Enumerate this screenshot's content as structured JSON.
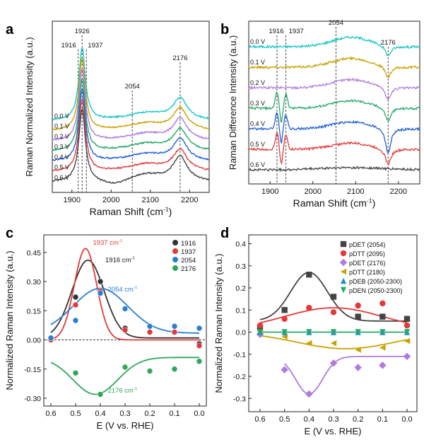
{
  "colors": {
    "v00": "#1ac6c6",
    "v01": "#c9a200",
    "v02": "#b07be0",
    "v03": "#27a86a",
    "v04": "#1f5fd6",
    "v05": "#e23a3a",
    "v06": "#444444",
    "p1916": "#333333",
    "p1937": "#e23a3a",
    "p2054": "#2a7fd0",
    "p2176": "#2fa65a",
    "d_pdet2054": "#444444",
    "d_pdtt2095": "#e23a3a",
    "d_pdet2176": "#b07be0",
    "d_pdtt2180": "#c9a200",
    "d_pdeb": "#1f8fd0",
    "d_pden": "#27a86a"
  },
  "chart_data": [
    {
      "panel": "a",
      "type": "line",
      "xlabel": "Raman Shift (cm-1)",
      "ylabel": "Raman Normalized Intensity (a.u.)",
      "xlim": [
        1850,
        2250
      ],
      "xticks": [
        "1900",
        "2000",
        "2100",
        "2200"
      ],
      "series_labels": [
        "0.0 V",
        "0.1 V",
        "0.2 V",
        "0.3 V",
        "0.4 V",
        "0.5 V",
        "0.6 V"
      ],
      "series_colors": [
        "v00",
        "v01",
        "v02",
        "v03",
        "v04",
        "v05",
        "v06"
      ],
      "series_offsets": [
        6,
        5,
        4,
        3,
        2,
        1,
        0
      ],
      "peaks": [
        {
          "center": 1926,
          "width": 10,
          "amp": 8.5
        },
        {
          "center": 2176,
          "width": 22,
          "amp": 2.6
        },
        {
          "center": 2090,
          "width": 60,
          "amp": 0.9
        }
      ],
      "guides": [
        {
          "x": 1916,
          "label": "1916"
        },
        {
          "x": 1926,
          "label": "1926"
        },
        {
          "x": 1937,
          "label": "1937"
        },
        {
          "x": 2054,
          "label": "2054"
        },
        {
          "x": 2176,
          "label": "2176"
        }
      ]
    },
    {
      "panel": "b",
      "type": "line",
      "xlabel": "Raman Shift (cm-1)",
      "ylabel": "Raman Difference Intensity (a.u.)",
      "xlim": [
        1850,
        2250
      ],
      "xticks": [
        "1900",
        "2000",
        "2100",
        "2200"
      ],
      "series_labels": [
        "0.0 V",
        "0.1 V",
        "0.2 V",
        "0.3 V",
        "0.4 V",
        "0.5 V",
        "0.6 V"
      ],
      "series_colors": [
        "v00",
        "v01",
        "v02",
        "v03",
        "v04",
        "v05",
        "v06"
      ],
      "series_offsets": [
        6,
        5,
        4,
        3,
        2,
        1,
        0
      ],
      "guides": [
        {
          "x": 1916,
          "label": "1916"
        },
        {
          "x": 1937,
          "label": "1937"
        },
        {
          "x": 2054,
          "label": "2054"
        },
        {
          "x": 2176,
          "label": "2176"
        }
      ]
    },
    {
      "panel": "c",
      "type": "scatter",
      "xlabel": "E (V vs. RHE)",
      "ylabel": "Normalized Raman Intensity (a.u.)",
      "xlim": [
        0.6,
        0.0
      ],
      "ylim": [
        -0.34,
        0.54
      ],
      "xticks": [
        "0.6",
        "0.5",
        "0.4",
        "0.3",
        "0.2",
        "0.1",
        "0.0"
      ],
      "yticks": [
        "-0.30",
        "-0.15",
        "0.00",
        "0.15",
        "0.30",
        "0.45"
      ],
      "legend": "top-right",
      "series": [
        {
          "name": "1916",
          "color": "p1916",
          "x": [
            0.6,
            0.5,
            0.4,
            0.3,
            0.2,
            0.1,
            0.0
          ],
          "y": [
            0.01,
            0.22,
            0.3,
            0.06,
            0.04,
            0.04,
            -0.02
          ],
          "annotation": "1916 cm-1"
        },
        {
          "name": "1937",
          "color": "p1937",
          "x": [
            0.6,
            0.5,
            0.4,
            0.3,
            0.2,
            0.1,
            0.0
          ],
          "y": [
            0.0,
            0.18,
            0.25,
            0.05,
            0.04,
            0.04,
            -0.03
          ],
          "annotation": "1937 cm-1"
        },
        {
          "name": "2054",
          "color": "p2054",
          "x": [
            0.6,
            0.5,
            0.4,
            0.3,
            0.2,
            0.1,
            0.0
          ],
          "y": [
            0.01,
            0.1,
            0.24,
            0.16,
            0.07,
            0.07,
            0.06
          ],
          "annotation": "2054 cm-1"
        },
        {
          "name": "2176",
          "color": "p2176",
          "x": [
            0.5,
            0.4,
            0.3,
            0.2,
            0.1,
            0.0
          ],
          "y": [
            -0.17,
            -0.28,
            -0.14,
            -0.16,
            -0.15,
            -0.11
          ],
          "annotation": "2176 cm-1"
        }
      ]
    },
    {
      "panel": "d",
      "type": "scatter",
      "xlabel": "E (V vs. RHE)",
      "ylabel": "Normalized Raman Intensity (a.u.)",
      "xlim": [
        0.6,
        0.0
      ],
      "ylim": [
        -0.36,
        0.44
      ],
      "xticks": [
        "0.6",
        "0.5",
        "0.4",
        "0.3",
        "0.2",
        "0.1",
        "0.0"
      ],
      "yticks": [
        "-0.3",
        "-0.2",
        "-0.1",
        "0.0",
        "0.1",
        "0.2",
        "0.3",
        "0.4"
      ],
      "legend": "top-right",
      "series": [
        {
          "name": "pDET (2054)",
          "color": "d_pdet2054",
          "marker": "square",
          "x": [
            0.6,
            0.5,
            0.4,
            0.3,
            0.2,
            0.1,
            0.0
          ],
          "y": [
            0.02,
            0.1,
            0.26,
            0.16,
            0.07,
            0.07,
            0.06
          ]
        },
        {
          "name": "pDTT (2095)",
          "color": "d_pdtt2095",
          "marker": "circle",
          "x": [
            0.6,
            0.5,
            0.4,
            0.3,
            0.2,
            0.1,
            0.0
          ],
          "y": [
            0.03,
            0.06,
            0.11,
            0.09,
            0.12,
            0.13,
            0.03
          ]
        },
        {
          "name": "pDET (2176)",
          "color": "d_pdet2176",
          "marker": "diamond",
          "x": [
            0.6,
            0.5,
            0.4,
            0.3,
            0.2,
            0.1,
            0.0
          ],
          "y": [
            -0.01,
            -0.17,
            -0.28,
            -0.14,
            -0.16,
            -0.15,
            -0.11
          ]
        },
        {
          "name": "pDTT (2180)",
          "color": "d_pdtt2180",
          "marker": "triangle-left",
          "x": [
            0.6,
            0.5,
            0.4,
            0.3,
            0.2,
            0.1,
            0.0
          ],
          "y": [
            0.0,
            -0.02,
            -0.05,
            -0.05,
            -0.08,
            -0.07,
            -0.04
          ]
        },
        {
          "name": "pDEB (2050-2300)",
          "color": "d_pdeb",
          "marker": "triangle-up",
          "x": [
            0.6,
            0.5,
            0.4,
            0.3,
            0.2,
            0.1,
            0.0
          ],
          "y": [
            0.0,
            0.0,
            0.0,
            0.0,
            0.0,
            0.0,
            0.0
          ]
        },
        {
          "name": "pDEN (2050-2300)",
          "color": "d_pden",
          "marker": "triangle-down",
          "x": [
            0.6,
            0.5,
            0.4,
            0.3,
            0.2,
            0.1,
            0.0
          ],
          "y": [
            0.0,
            0.0,
            0.0,
            0.0,
            0.0,
            0.0,
            0.0
          ]
        }
      ]
    }
  ],
  "panels": {
    "a": "a",
    "b": "b",
    "c": "c",
    "d": "d"
  }
}
